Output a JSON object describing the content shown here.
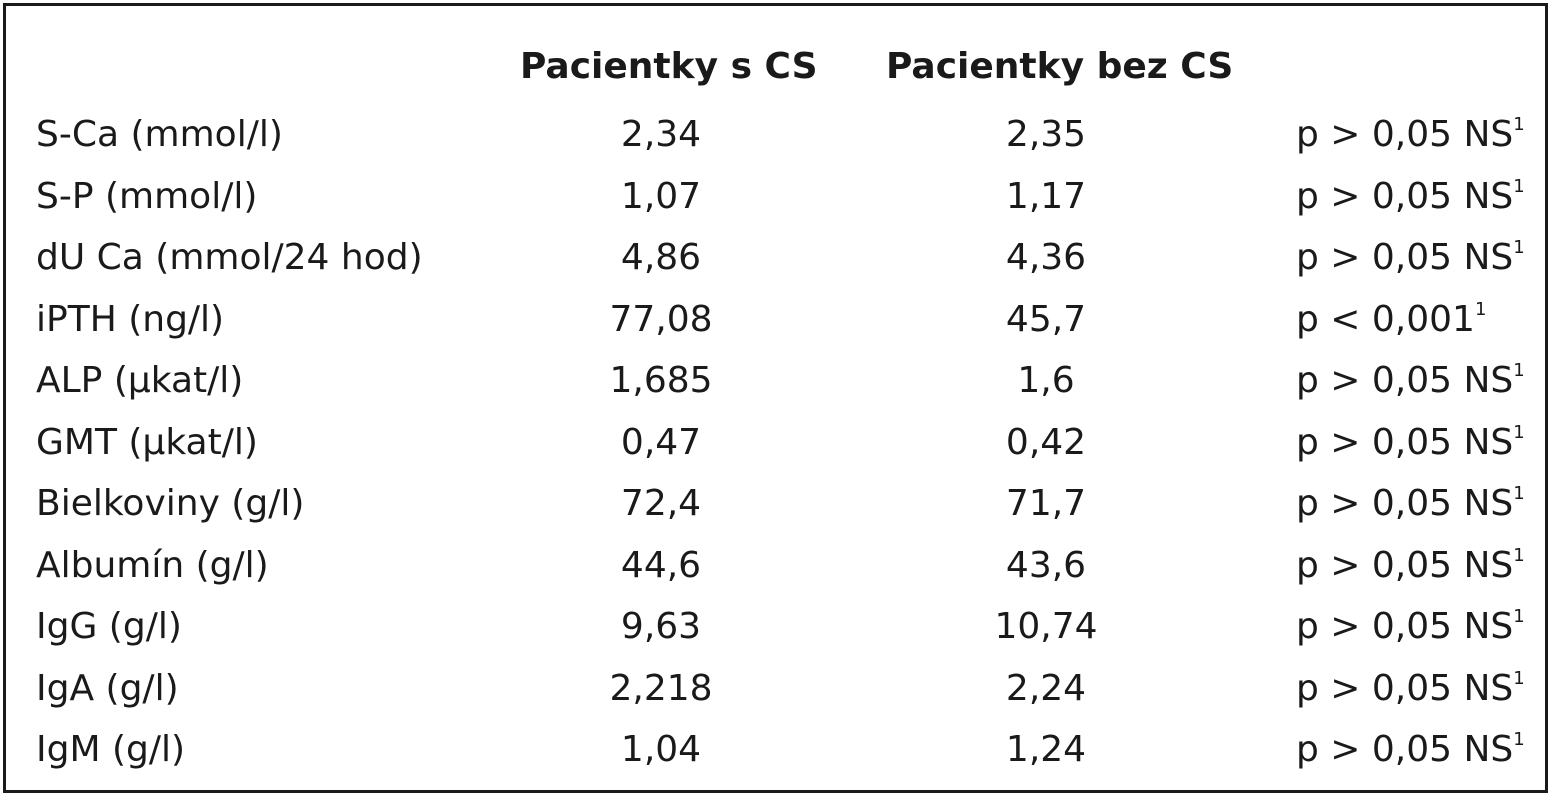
{
  "table": {
    "header": {
      "col_param": "",
      "col_with": "Pacientky s CS",
      "col_without": "Pacientky bez CS",
      "col_p": ""
    },
    "rows": [
      {
        "param": "S-Ca (mmol/l)",
        "with_cs": "2,34",
        "without_cs": "2,35",
        "p": "p > 0,05 NS",
        "note": "1"
      },
      {
        "param": "S-P (mmol/l)",
        "with_cs": "1,07",
        "without_cs": "1,17",
        "p": "p > 0,05 NS",
        "note": "1"
      },
      {
        "param": "dU Ca (mmol/24 hod)",
        "with_cs": "4,86",
        "without_cs": "4,36",
        "p": "p > 0,05 NS",
        "note": "1"
      },
      {
        "param": "iPTH (ng/l)",
        "with_cs": "77,08",
        "without_cs": "45,7",
        "p": "p < 0,001",
        "note": "1"
      },
      {
        "param": "ALP (µkat/l)",
        "with_cs": "1,685",
        "without_cs": "1,6",
        "p": "p > 0,05 NS",
        "note": "1"
      },
      {
        "param": "GMT (µkat/l)",
        "with_cs": "0,47",
        "without_cs": "0,42",
        "p": "p > 0,05 NS",
        "note": "1"
      },
      {
        "param": "Bielkoviny (g/l)",
        "with_cs": "72,4",
        "without_cs": "71,7",
        "p": "p > 0,05 NS",
        "note": "1"
      },
      {
        "param": "Albumín (g/l)",
        "with_cs": "44,6",
        "without_cs": "43,6",
        "p": "p > 0,05 NS",
        "note": "1"
      },
      {
        "param": "IgG (g/l)",
        "with_cs": "9,63",
        "without_cs": "10,74",
        "p": "p > 0,05 NS",
        "note": "1"
      },
      {
        "param": "IgA (g/l)",
        "with_cs": "2,218",
        "without_cs": "2,24",
        "p": "p > 0,05 NS",
        "note": "1"
      },
      {
        "param": "IgM (g/l)",
        "with_cs": "1,04",
        "without_cs": "1,24",
        "p": "p > 0,05 NS",
        "note": "1"
      }
    ]
  }
}
